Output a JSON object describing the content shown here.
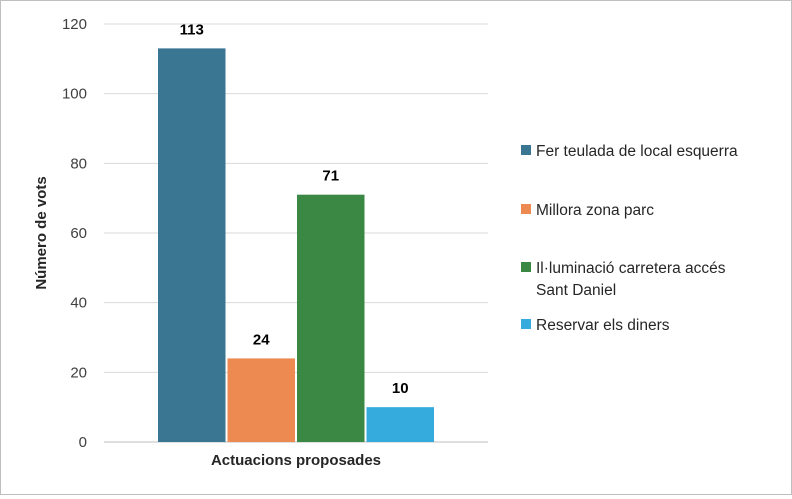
{
  "chart_data": {
    "type": "bar",
    "xlabel": "Actuacions proposades",
    "ylabel": "Número de vots",
    "ylim": [
      0,
      120
    ],
    "yticks": [
      0,
      20,
      40,
      60,
      80,
      100,
      120
    ],
    "grid": true,
    "legend_position": "right",
    "series": [
      {
        "name": "Fer teulada de local esquerra",
        "value": 113,
        "color": "#3a7591"
      },
      {
        "name": "Millora zona parc",
        "value": 24,
        "color": "#ec8a51"
      },
      {
        "name": "Il·luminació carretera accés Sant Daniel",
        "legend_lines": [
          "Il·luminació carretera accés",
          "Sant Daniel"
        ],
        "value": 71,
        "color": "#3a8844"
      },
      {
        "name": "Reservar els diners",
        "value": 10,
        "color": "#35aadc"
      }
    ]
  }
}
